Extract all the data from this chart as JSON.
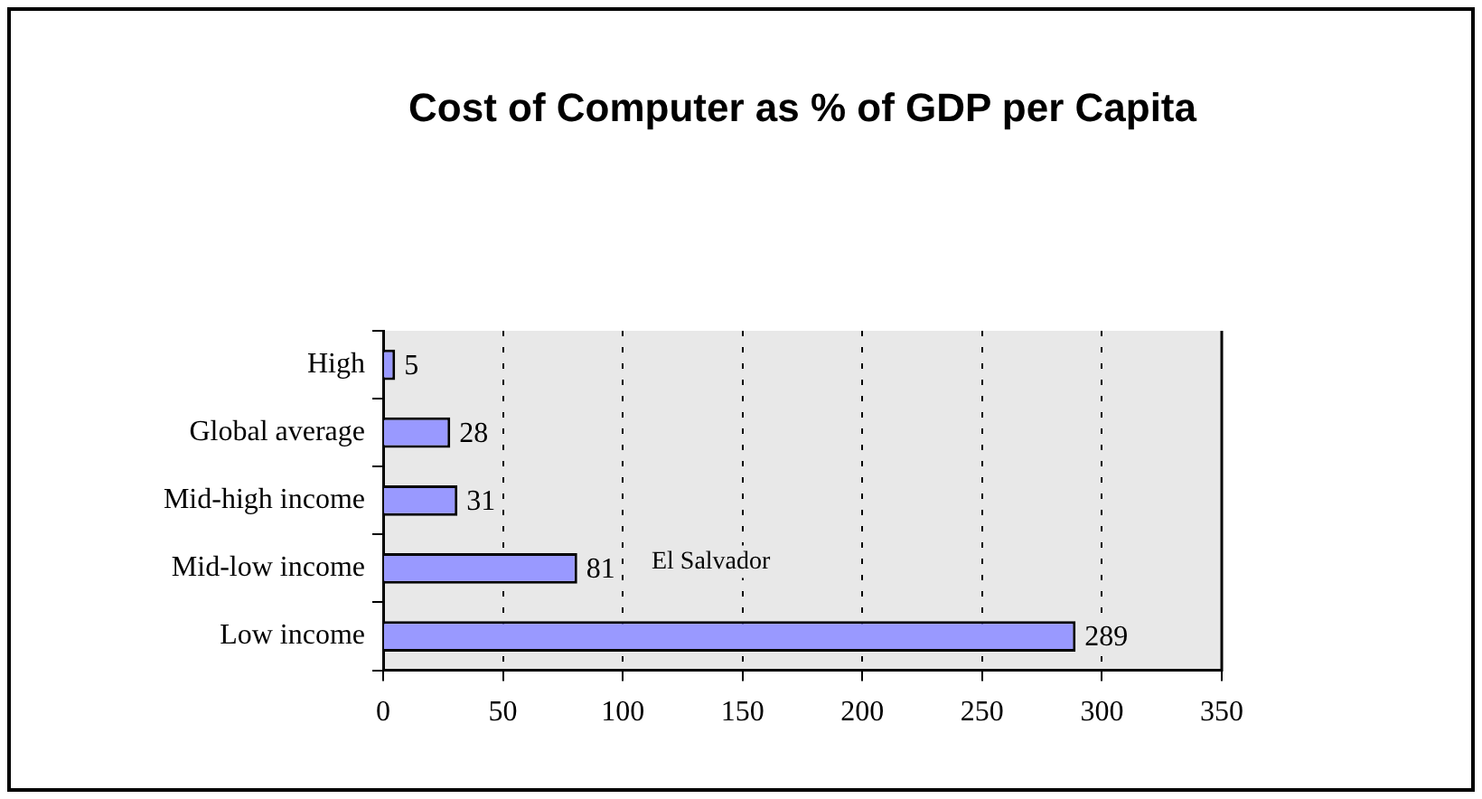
{
  "chart_data": {
    "type": "bar",
    "orientation": "horizontal",
    "title": "Cost of Computer as % of GDP per Capita",
    "categories": [
      "High",
      "Global average",
      "Mid-high income",
      "Mid-low income",
      "Low income"
    ],
    "values": [
      5,
      28,
      31,
      81,
      289
    ],
    "color": "#9999ff",
    "xlim": [
      0,
      350
    ],
    "xticks": [
      0,
      50,
      100,
      150,
      200,
      250,
      300,
      350
    ],
    "grid": "x",
    "data_labels": true,
    "legend": false,
    "annotations": [
      "El Salvador"
    ]
  }
}
